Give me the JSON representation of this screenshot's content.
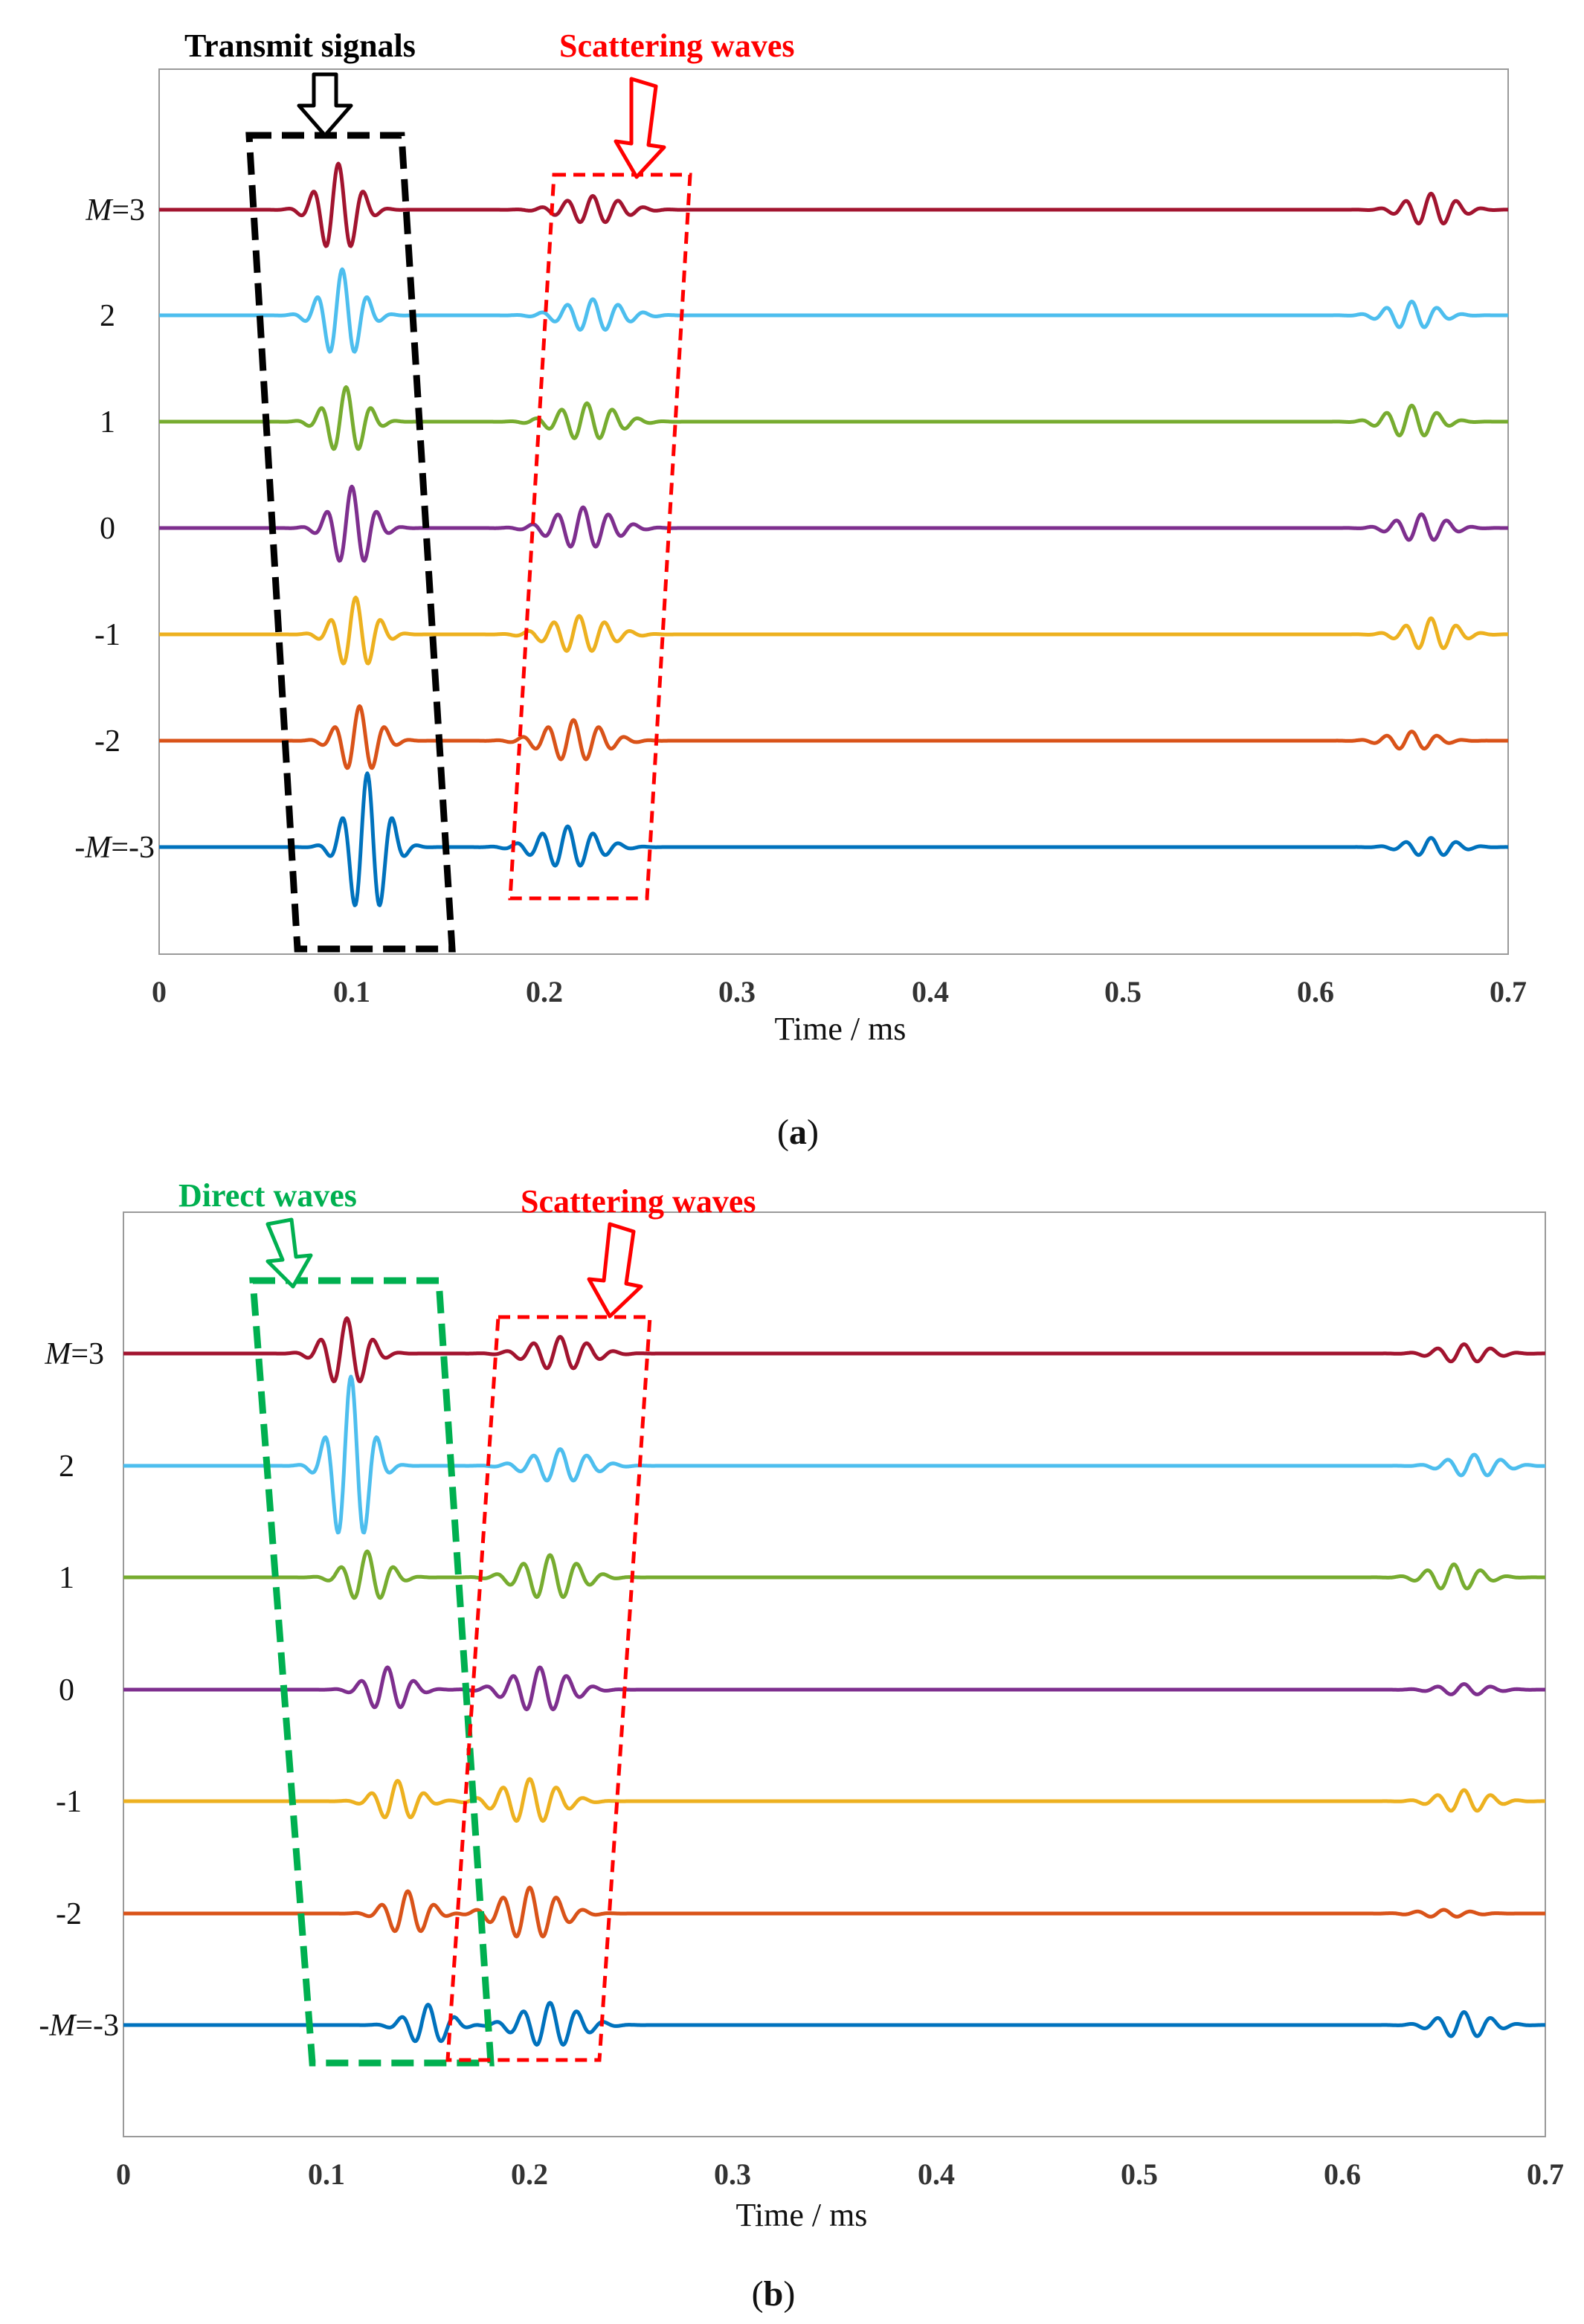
{
  "colors": {
    "M3": "#A2142F",
    "M2": "#4DBEEE",
    "M1": "#77AC30",
    "M0": "#7E2F8E",
    "Mm1": "#EDB120",
    "Mm2": "#D95319",
    "Mm3": "#0072BD",
    "transmit": "#000000",
    "scatter": "#FF0000",
    "direct": "#00B050"
  },
  "chart_data": [
    {
      "type": "line",
      "panel": "a",
      "caption_open": "(",
      "caption_letter": "a",
      "caption_close": ")",
      "xlabel": "Time / ms",
      "xlim": [
        0,
        0.7
      ],
      "xticks": [
        "0",
        "0.1",
        "0.2",
        "0.3",
        "0.4",
        "0.5",
        "0.6",
        "0.7"
      ],
      "ylabel_prefix_top": "M",
      "ylabel_suffix_top": "=3",
      "ylabel_prefix_bottom": "-M",
      "ylabel_suffix_bottom": "=-3",
      "channel_labels": [
        "2",
        "1",
        "0",
        "-1",
        "-2"
      ],
      "annotations": {
        "transmit": "Transmit signals",
        "scatter": "Scattering waves"
      },
      "series": [
        {
          "name": "M=3",
          "color_key": "M3",
          "packets": [
            {
              "center": 0.093,
              "width": 0.02,
              "amp": 1.0
            },
            {
              "center": 0.225,
              "width": 0.03,
              "amp": 0.3
            },
            {
              "center": 0.66,
              "width": 0.025,
              "amp": 0.35
            }
          ]
        },
        {
          "name": "2",
          "color_key": "M2",
          "packets": [
            {
              "center": 0.095,
              "width": 0.02,
              "amp": 1.0
            },
            {
              "center": 0.225,
              "width": 0.03,
              "amp": 0.35
            },
            {
              "center": 0.65,
              "width": 0.025,
              "amp": 0.3
            }
          ]
        },
        {
          "name": "1",
          "color_key": "M1",
          "packets": [
            {
              "center": 0.097,
              "width": 0.02,
              "amp": 0.75
            },
            {
              "center": 0.222,
              "width": 0.03,
              "amp": 0.4
            },
            {
              "center": 0.65,
              "width": 0.025,
              "amp": 0.35
            }
          ]
        },
        {
          "name": "0",
          "color_key": "M0",
          "packets": [
            {
              "center": 0.1,
              "width": 0.02,
              "amp": 0.9
            },
            {
              "center": 0.22,
              "width": 0.03,
              "amp": 0.45
            },
            {
              "center": 0.655,
              "width": 0.025,
              "amp": 0.3
            }
          ]
        },
        {
          "name": "-1",
          "color_key": "Mm1",
          "packets": [
            {
              "center": 0.102,
              "width": 0.02,
              "amp": 0.8
            },
            {
              "center": 0.218,
              "width": 0.03,
              "amp": 0.4
            },
            {
              "center": 0.66,
              "width": 0.025,
              "amp": 0.35
            }
          ]
        },
        {
          "name": "-2",
          "color_key": "Mm2",
          "packets": [
            {
              "center": 0.104,
              "width": 0.02,
              "amp": 0.75
            },
            {
              "center": 0.215,
              "width": 0.03,
              "amp": 0.45
            },
            {
              "center": 0.65,
              "width": 0.025,
              "amp": 0.2
            }
          ]
        },
        {
          "name": "-M=-3",
          "color_key": "Mm3",
          "packets": [
            {
              "center": 0.108,
              "width": 0.02,
              "amp": 1.6
            },
            {
              "center": 0.212,
              "width": 0.03,
              "amp": 0.45
            },
            {
              "center": 0.66,
              "width": 0.025,
              "amp": 0.2
            }
          ]
        }
      ]
    },
    {
      "type": "line",
      "panel": "b",
      "caption_open": "(",
      "caption_letter": "b",
      "caption_close": ")",
      "xlabel": "Time / ms",
      "xlim": [
        0,
        0.7
      ],
      "xticks": [
        "0",
        "0.1",
        "0.2",
        "0.3",
        "0.4",
        "0.5",
        "0.6",
        "0.7"
      ],
      "ylabel_prefix_top": "M",
      "ylabel_suffix_top": "=3",
      "ylabel_prefix_bottom": "-M",
      "ylabel_suffix_bottom": "=-3",
      "channel_labels": [
        "2",
        "1",
        "0",
        "-1",
        "-2"
      ],
      "annotations": {
        "direct": "Direct waves",
        "scatter": "Scattering waves"
      },
      "series": [
        {
          "name": "M=3",
          "color_key": "M3",
          "packets": [
            {
              "center": 0.11,
              "width": 0.02,
              "amp": 0.95
            },
            {
              "center": 0.215,
              "width": 0.028,
              "amp": 0.45
            },
            {
              "center": 0.66,
              "width": 0.025,
              "amp": 0.25
            }
          ]
        },
        {
          "name": "2",
          "color_key": "M2",
          "packets": [
            {
              "center": 0.112,
              "width": 0.018,
              "amp": 2.4
            },
            {
              "center": 0.215,
              "width": 0.028,
              "amp": 0.45
            },
            {
              "center": 0.665,
              "width": 0.025,
              "amp": 0.3
            }
          ]
        },
        {
          "name": "1",
          "color_key": "M1",
          "packets": [
            {
              "center": 0.12,
              "width": 0.02,
              "amp": 0.7
            },
            {
              "center": 0.21,
              "width": 0.028,
              "amp": 0.6
            },
            {
              "center": 0.655,
              "width": 0.025,
              "amp": 0.35
            }
          ]
        },
        {
          "name": "0",
          "color_key": "M0",
          "packets": [
            {
              "center": 0.13,
              "width": 0.02,
              "amp": 0.6
            },
            {
              "center": 0.205,
              "width": 0.028,
              "amp": 0.6
            },
            {
              "center": 0.66,
              "width": 0.025,
              "amp": 0.15
            }
          ]
        },
        {
          "name": "-1",
          "color_key": "Mm1",
          "packets": [
            {
              "center": 0.135,
              "width": 0.02,
              "amp": 0.55
            },
            {
              "center": 0.2,
              "width": 0.028,
              "amp": 0.6
            },
            {
              "center": 0.66,
              "width": 0.025,
              "amp": 0.3
            }
          ]
        },
        {
          "name": "-2",
          "color_key": "Mm2",
          "packets": [
            {
              "center": 0.14,
              "width": 0.02,
              "amp": 0.6
            },
            {
              "center": 0.2,
              "width": 0.028,
              "amp": 0.7
            },
            {
              "center": 0.65,
              "width": 0.025,
              "amp": 0.1
            }
          ]
        },
        {
          "name": "-M=-3",
          "color_key": "Mm3",
          "packets": [
            {
              "center": 0.15,
              "width": 0.02,
              "amp": 0.55
            },
            {
              "center": 0.21,
              "width": 0.028,
              "amp": 0.6
            },
            {
              "center": 0.66,
              "width": 0.025,
              "amp": 0.35
            }
          ]
        }
      ]
    }
  ]
}
